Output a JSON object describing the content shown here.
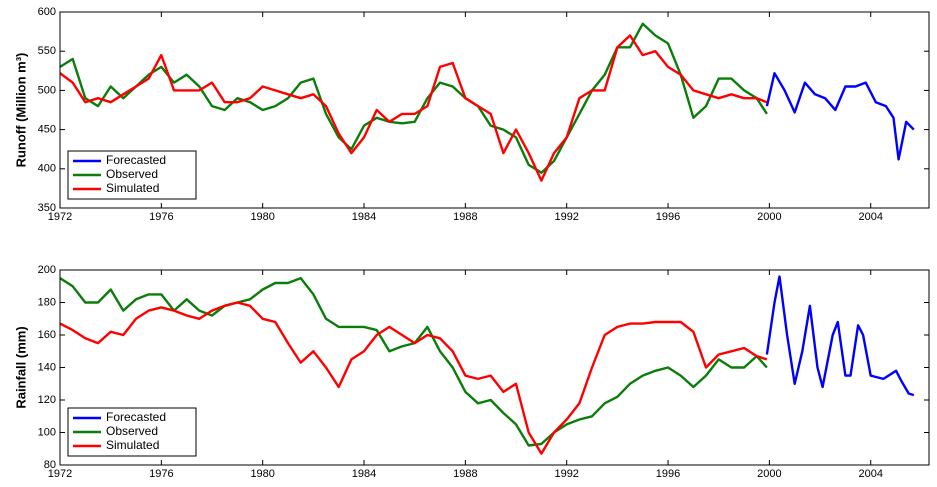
{
  "chart_data": [
    {
      "type": "line",
      "ylabel": "Runoff  (Million m³)",
      "xlim": [
        1972,
        2006.3
      ],
      "xticks": [
        1972,
        1976,
        1980,
        1984,
        1988,
        1992,
        1996,
        2000,
        2004
      ],
      "ylim": [
        350,
        600
      ],
      "yticks": [
        350,
        400,
        450,
        500,
        550,
        600
      ],
      "legend": "lower left",
      "series": [
        {
          "name": "Forecasted",
          "color": "#0000ff",
          "x": [
            1999.9,
            2000.2,
            2000.6,
            2001,
            2001.4,
            2001.8,
            2002.2,
            2002.6,
            2003,
            2003.4,
            2003.8,
            2004.2,
            2004.6,
            2004.9,
            2005.1,
            2005.4,
            2005.7
          ],
          "values": [
            480,
            522,
            500,
            472,
            510,
            495,
            490,
            475,
            505,
            505,
            510,
            485,
            480,
            465,
            412,
            460,
            450
          ]
        },
        {
          "name": "Observed",
          "color": "#0b7d0b",
          "x": [
            1972,
            1972.5,
            1973,
            1973.5,
            1974,
            1974.5,
            1975,
            1975.5,
            1976,
            1976.5,
            1977,
            1977.5,
            1978,
            1978.5,
            1979,
            1979.5,
            1980,
            1980.5,
            1981,
            1981.5,
            1982,
            1982.5,
            1983,
            1983.5,
            1984,
            1984.5,
            1985,
            1985.5,
            1986,
            1986.5,
            1987,
            1987.5,
            1988,
            1988.5,
            1989,
            1989.5,
            1990,
            1990.5,
            1991,
            1991.5,
            1992,
            1992.5,
            1993,
            1993.5,
            1994,
            1994.5,
            1995,
            1995.5,
            1996,
            1996.5,
            1997,
            1997.5,
            1998,
            1998.5,
            1999,
            1999.5,
            1999.9
          ],
          "values": [
            530,
            540,
            490,
            480,
            505,
            490,
            505,
            520,
            530,
            510,
            520,
            505,
            480,
            475,
            490,
            485,
            475,
            480,
            490,
            510,
            515,
            470,
            440,
            425,
            455,
            465,
            460,
            458,
            460,
            490,
            510,
            505,
            490,
            480,
            455,
            450,
            440,
            405,
            395,
            410,
            440,
            470,
            500,
            520,
            555,
            555,
            585,
            570,
            560,
            520,
            465,
            480,
            515,
            515,
            500,
            490,
            470
          ]
        },
        {
          "name": "Simulated",
          "color": "#ff0000",
          "x": [
            1972,
            1972.5,
            1973,
            1973.5,
            1974,
            1974.5,
            1975,
            1975.5,
            1976,
            1976.5,
            1977,
            1977.5,
            1978,
            1978.5,
            1979,
            1979.5,
            1980,
            1980.5,
            1981,
            1981.5,
            1982,
            1982.5,
            1983,
            1983.5,
            1984,
            1984.5,
            1985,
            1985.5,
            1986,
            1986.5,
            1987,
            1987.5,
            1988,
            1988.5,
            1989,
            1989.5,
            1990,
            1990.5,
            1991,
            1991.5,
            1992,
            1992.5,
            1993,
            1993.5,
            1994,
            1994.5,
            1995,
            1995.5,
            1996,
            1996.5,
            1997,
            1997.5,
            1998,
            1998.5,
            1999,
            1999.5,
            1999.9
          ],
          "values": [
            522,
            510,
            485,
            490,
            485,
            495,
            505,
            515,
            545,
            500,
            500,
            500,
            510,
            485,
            485,
            490,
            505,
            500,
            495,
            490,
            495,
            480,
            445,
            420,
            440,
            475,
            460,
            470,
            470,
            480,
            530,
            535,
            490,
            480,
            470,
            420,
            450,
            420,
            385,
            420,
            440,
            490,
            500,
            500,
            555,
            570,
            545,
            550,
            530,
            520,
            500,
            495,
            490,
            495,
            490,
            490,
            485
          ]
        }
      ]
    },
    {
      "type": "line",
      "ylabel": "Rainfall (mm)",
      "xlim": [
        1972,
        2006.3
      ],
      "xticks": [
        1972,
        1976,
        1980,
        1984,
        1988,
        1992,
        1996,
        2000,
        2004
      ],
      "ylim": [
        80,
        200
      ],
      "yticks": [
        80,
        100,
        120,
        140,
        160,
        180,
        200
      ],
      "legend": "lower left",
      "series": [
        {
          "name": "Forecasted",
          "color": "#0000ff",
          "x": [
            1999.9,
            2000.2,
            2000.4,
            2000.7,
            2001,
            2001.3,
            2001.6,
            2001.9,
            2002.1,
            2002.5,
            2002.7,
            2003,
            2003.2,
            2003.5,
            2003.7,
            2004,
            2004.5,
            2005,
            2005.2,
            2005.5,
            2005.7
          ],
          "values": [
            148,
            180,
            196,
            160,
            130,
            150,
            178,
            140,
            128,
            160,
            168,
            135,
            135,
            166,
            160,
            135,
            133,
            138,
            132,
            124,
            123
          ]
        },
        {
          "name": "Observed",
          "color": "#0b7d0b",
          "x": [
            1972,
            1972.5,
            1973,
            1973.5,
            1974,
            1974.5,
            1975,
            1975.5,
            1976,
            1976.5,
            1977,
            1977.5,
            1978,
            1978.5,
            1979,
            1979.5,
            1980,
            1980.5,
            1981,
            1981.5,
            1982,
            1982.5,
            1983,
            1983.5,
            1984,
            1984.5,
            1985,
            1985.5,
            1986,
            1986.5,
            1987,
            1987.5,
            1988,
            1988.5,
            1989,
            1989.5,
            1990,
            1990.5,
            1991,
            1991.5,
            1992,
            1992.5,
            1993,
            1993.5,
            1994,
            1994.5,
            1995,
            1995.5,
            1996,
            1996.5,
            1997,
            1997.5,
            1998,
            1998.5,
            1999,
            1999.5,
            1999.9
          ],
          "values": [
            195,
            190,
            180,
            180,
            188,
            175,
            182,
            185,
            185,
            175,
            182,
            175,
            172,
            178,
            180,
            182,
            188,
            192,
            192,
            195,
            185,
            170,
            165,
            165,
            165,
            163,
            150,
            153,
            155,
            165,
            150,
            140,
            125,
            118,
            120,
            112,
            105,
            92,
            93,
            100,
            105,
            108,
            110,
            118,
            122,
            130,
            135,
            138,
            140,
            135,
            128,
            135,
            145,
            140,
            140,
            147,
            140
          ]
        },
        {
          "name": "Simulated",
          "color": "#ff0000",
          "x": [
            1972,
            1972.5,
            1973,
            1973.5,
            1974,
            1974.5,
            1975,
            1975.5,
            1976,
            1976.5,
            1977,
            1977.5,
            1978,
            1978.5,
            1979,
            1979.5,
            1980,
            1980.5,
            1981,
            1981.5,
            1982,
            1982.5,
            1983,
            1983.5,
            1984,
            1984.5,
            1985,
            1985.5,
            1986,
            1986.5,
            1987,
            1987.5,
            1988,
            1988.5,
            1989,
            1989.5,
            1990,
            1990.5,
            1991,
            1991.5,
            1992,
            1992.5,
            1993,
            1993.5,
            1994,
            1994.5,
            1995,
            1995.5,
            1996,
            1996.5,
            1997,
            1997.5,
            1998,
            1998.5,
            1999,
            1999.5,
            1999.9
          ],
          "values": [
            167,
            163,
            158,
            155,
            162,
            160,
            170,
            175,
            177,
            175,
            172,
            170,
            175,
            178,
            180,
            178,
            170,
            168,
            155,
            143,
            150,
            140,
            128,
            145,
            150,
            160,
            165,
            160,
            155,
            160,
            158,
            150,
            135,
            133,
            135,
            125,
            130,
            100,
            87,
            100,
            108,
            118,
            140,
            160,
            165,
            167,
            167,
            168,
            168,
            168,
            162,
            140,
            148,
            150,
            152,
            147,
            145
          ]
        }
      ]
    }
  ]
}
